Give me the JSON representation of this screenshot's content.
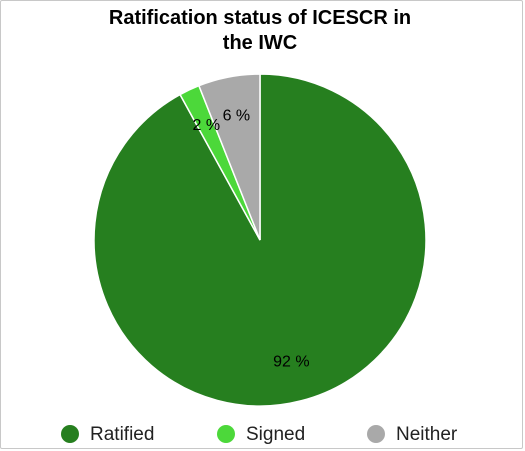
{
  "chart_data": {
    "type": "pie",
    "title": "Ratification status of ICESCR in the IWC",
    "categories": [
      "Ratified",
      "Signed",
      "Neither"
    ],
    "values": [
      92,
      2,
      6
    ],
    "value_labels": [
      "92 %",
      "2 %",
      "6 %"
    ],
    "colors": [
      "#267f1f",
      "#4cd83a",
      "#a9a9a9"
    ]
  }
}
